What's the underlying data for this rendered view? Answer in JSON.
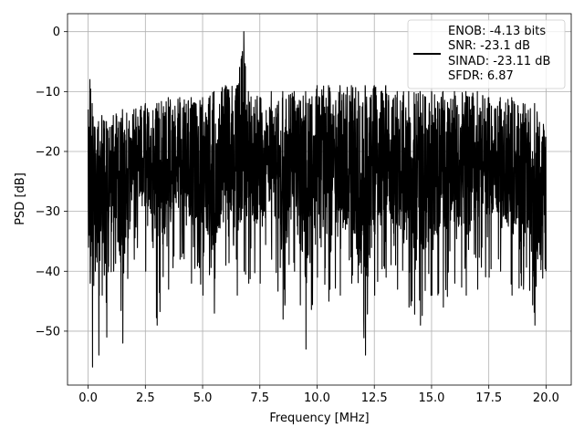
{
  "chart_data": {
    "type": "line",
    "title": "",
    "xlabel": "Frequency [MHz]",
    "ylabel": "PSD [dB]",
    "xlim": [
      -0.9,
      21.1
    ],
    "ylim": [
      -59,
      3
    ],
    "xticks": [
      0.0,
      2.5,
      5.0,
      7.5,
      10.0,
      12.5,
      15.0,
      17.5,
      20.0
    ],
    "xtick_labels": [
      "0.0",
      "2.5",
      "5.0",
      "7.5",
      "10.0",
      "12.5",
      "15.0",
      "17.5",
      "20.0"
    ],
    "yticks": [
      0,
      -10,
      -20,
      -30,
      -40,
      -50
    ],
    "ytick_labels": [
      "0",
      "−10",
      "−20",
      "−30",
      "−40",
      "−50"
    ],
    "grid": true,
    "legend_position": "top-right",
    "legend": [
      "ENOB: -4.13 bits",
      "SNR: -23.1 dB",
      "SINAD: -23.11 dB",
      "SFDR: 6.87"
    ],
    "line_color": "#000000",
    "series": [
      {
        "name": "",
        "x": [
          0.0,
          0.08,
          0.18,
          0.3,
          0.45,
          0.6,
          0.8,
          1.1,
          1.5,
          2.0,
          2.5,
          3.0,
          3.5,
          4.0,
          4.5,
          5.0,
          5.5,
          6.0,
          6.5,
          6.8,
          7.0,
          7.5,
          8.0,
          8.5,
          9.0,
          9.5,
          10.0,
          10.5,
          11.0,
          11.5,
          12.1,
          12.5,
          13.0,
          13.5,
          14.0,
          14.5,
          15.0,
          15.5,
          16.0,
          16.5,
          17.0,
          17.5,
          18.0,
          18.5,
          19.0,
          19.5,
          20.0
        ],
        "upper": [
          -13,
          -8,
          -12,
          -16,
          -15,
          -14,
          -15,
          -14,
          -13,
          -13,
          -12,
          -12,
          -11,
          -11,
          -11,
          -11,
          -10,
          -9,
          -9,
          0,
          -10,
          -11,
          -10,
          -10,
          -10,
          -10,
          -9,
          -9,
          -9,
          -9,
          -9,
          -9,
          -9,
          -10,
          -10,
          -10,
          -10,
          -10,
          -10,
          -10,
          -10,
          -11,
          -11,
          -11,
          -12,
          -12,
          -13
        ],
        "lower": [
          -36,
          -42,
          -56,
          -40,
          -54,
          -44,
          -51,
          -40,
          -52,
          -38,
          -40,
          -49,
          -43,
          -38,
          -42,
          -44,
          -47,
          -39,
          -44,
          -40,
          -42,
          -42,
          -38,
          -48,
          -40,
          -53,
          -41,
          -45,
          -44,
          -42,
          -54,
          -44,
          -41,
          -43,
          -46,
          -49,
          -44,
          -46,
          -42,
          -44,
          -43,
          -41,
          -40,
          -44,
          -43,
          -49,
          -40
        ]
      }
    ]
  }
}
